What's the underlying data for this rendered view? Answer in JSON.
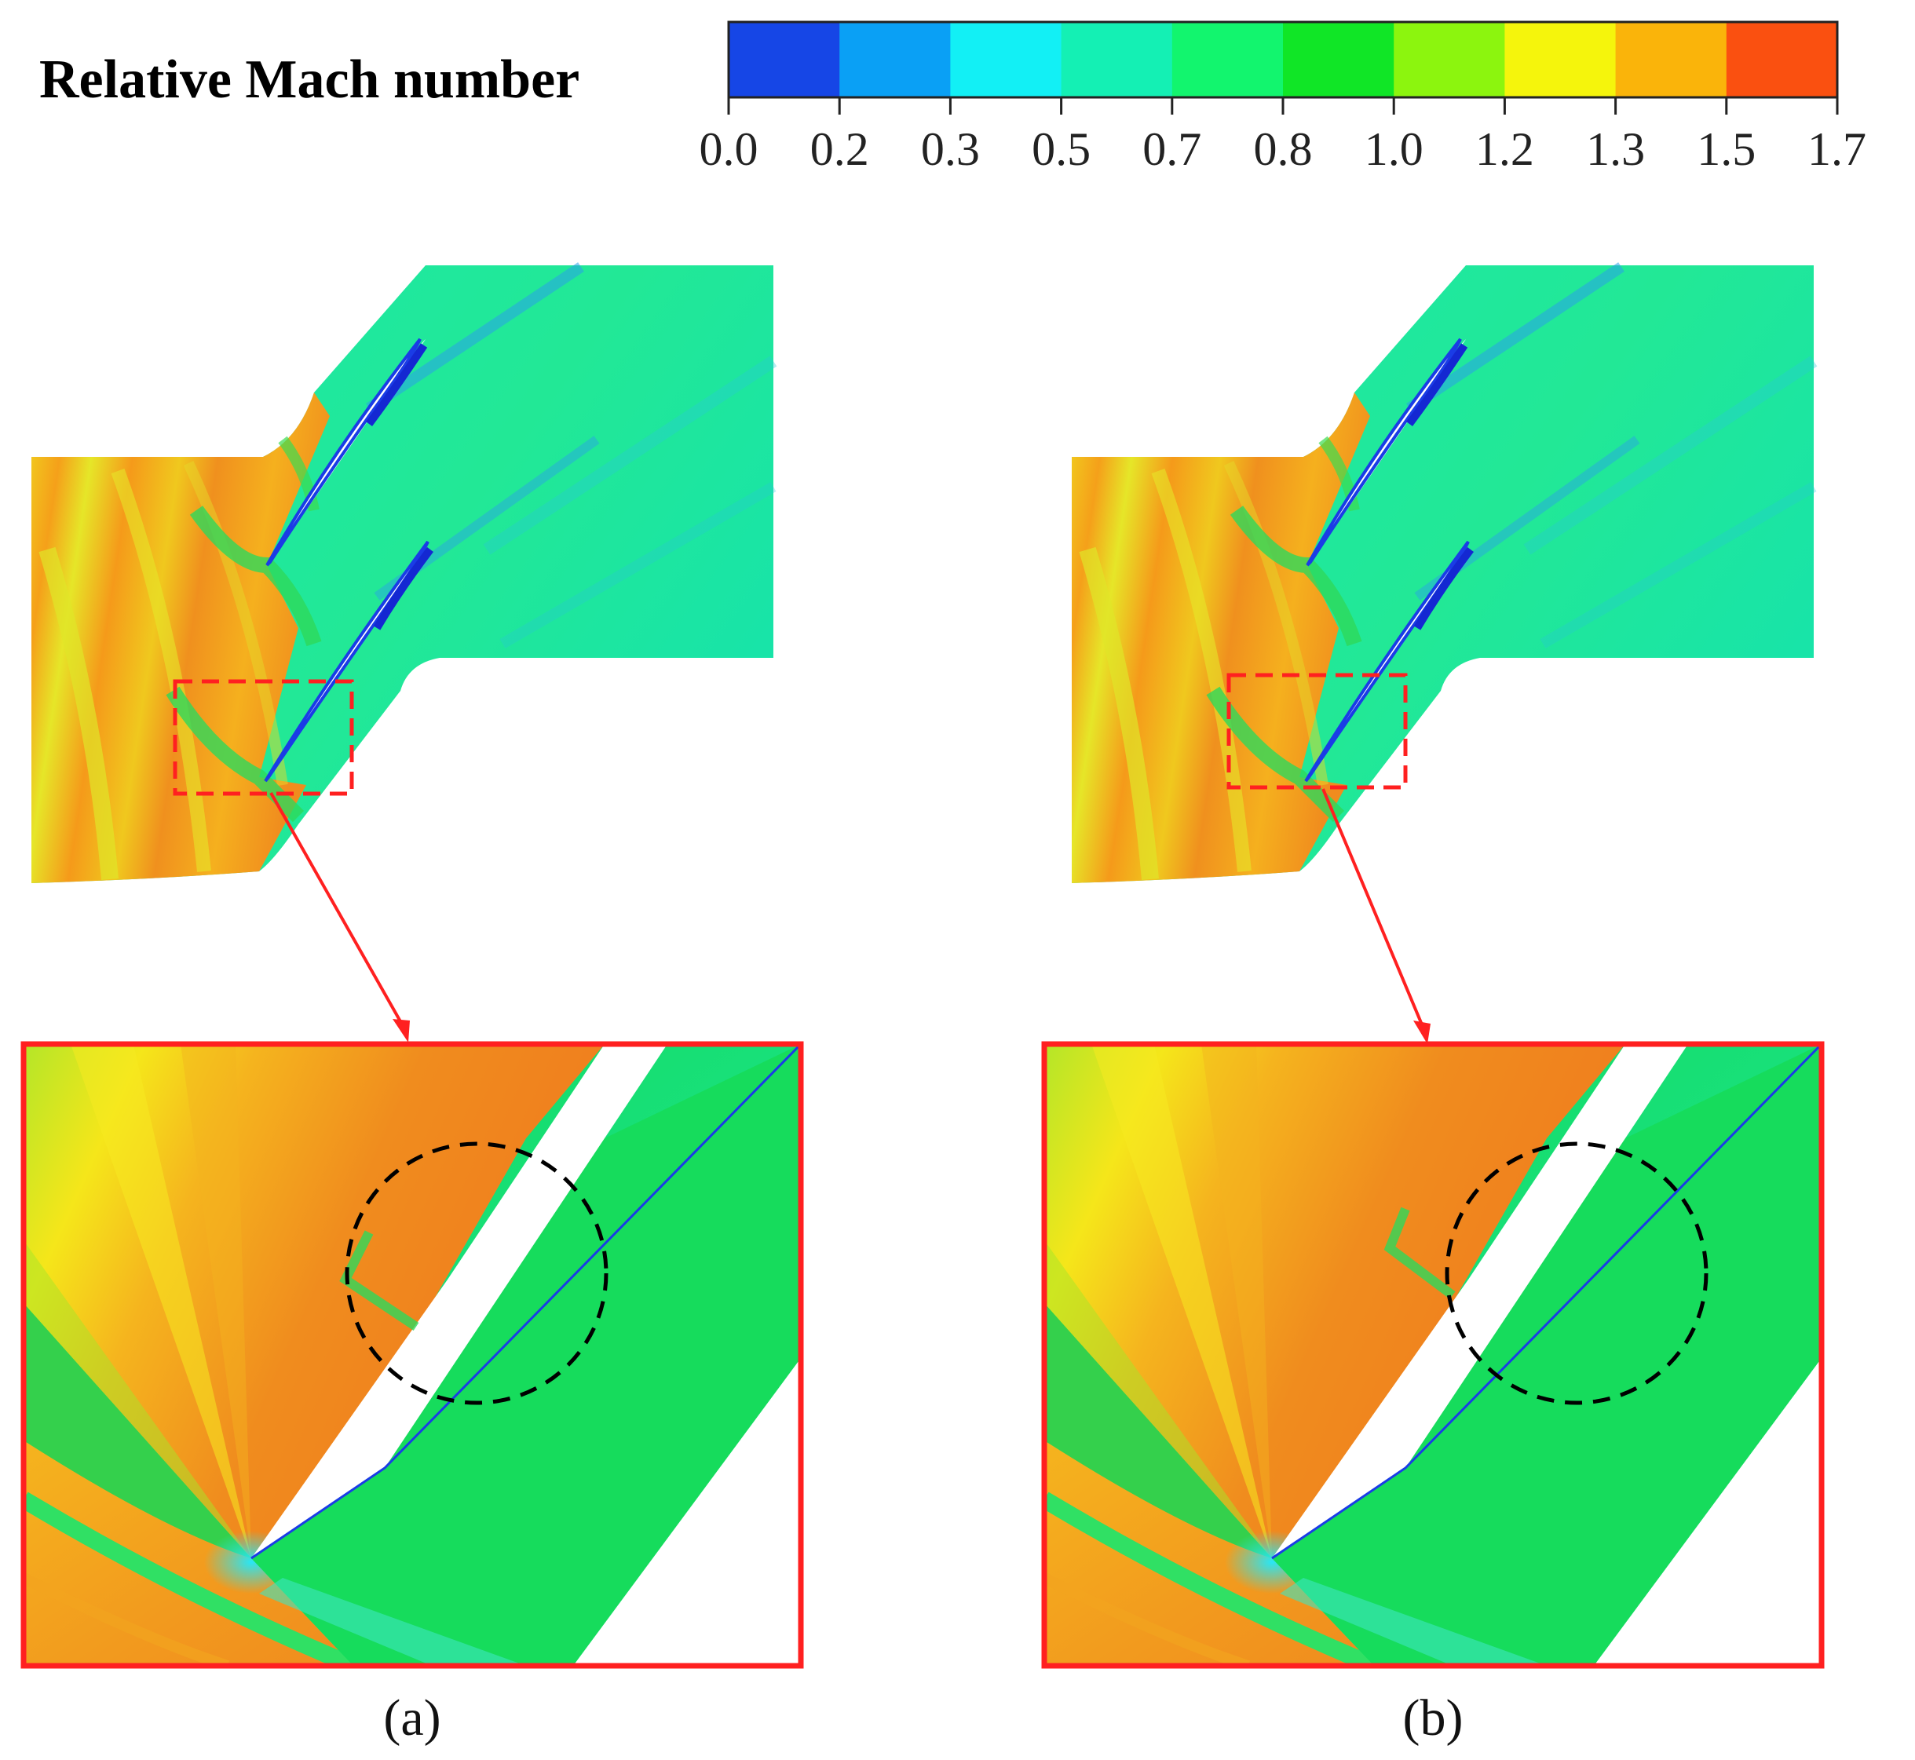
{
  "colorbar": {
    "title": "Relative Mach number",
    "ticks": [
      "0.0",
      "0.2",
      "0.3",
      "0.5",
      "0.7",
      "0.8",
      "1.0",
      "1.2",
      "1.3",
      "1.5",
      "1.7"
    ],
    "colors": [
      "#1646e6",
      "#0aa0f5",
      "#12f0f5",
      "#14f0b4",
      "#12f56e",
      "#10e626",
      "#8cf50e",
      "#f5f50c",
      "#fab40a",
      "#fa5010"
    ]
  },
  "panels": [
    {
      "label": "(a)"
    },
    {
      "label": "(b)"
    }
  ],
  "colors": {
    "highlight": "#ff2020",
    "region_marker": "#000000",
    "supersonic": "#f08c1e",
    "subsonic": "#14dc64",
    "blade": "#ffffff"
  }
}
